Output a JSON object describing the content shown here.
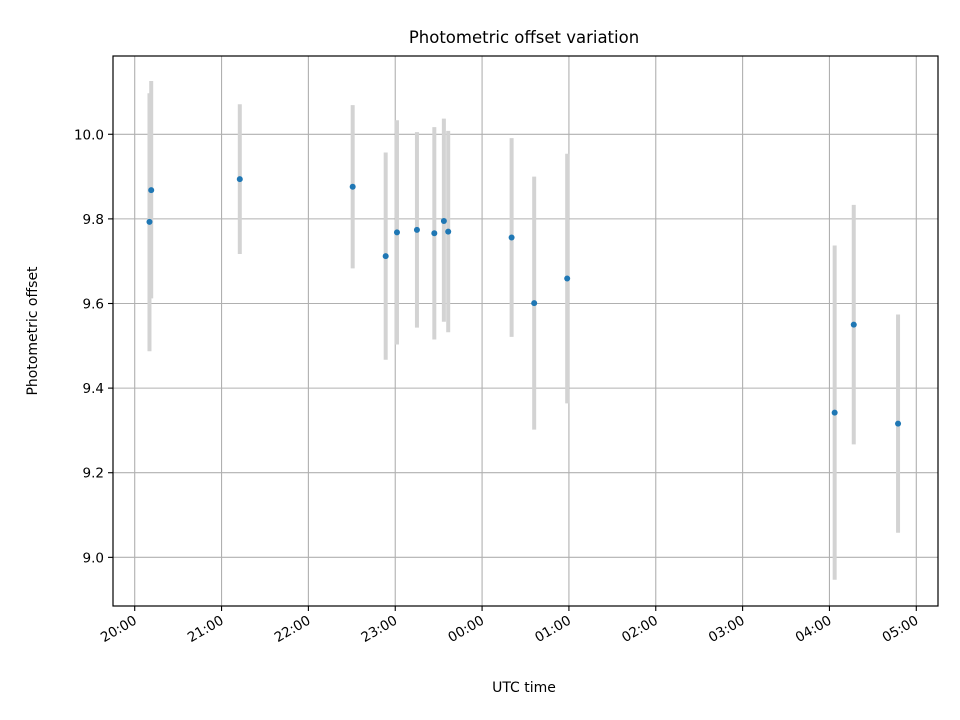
{
  "chart_data": {
    "type": "scatter",
    "title": "Photometric offset variation",
    "xlabel": "UTC time",
    "ylabel": "Photometric offset",
    "grid": true,
    "x_ticks": [
      {
        "hours": 0,
        "label": "20:00"
      },
      {
        "hours": 1,
        "label": "21:00"
      },
      {
        "hours": 2,
        "label": "22:00"
      },
      {
        "hours": 3,
        "label": "23:00"
      },
      {
        "hours": 4,
        "label": "00:00"
      },
      {
        "hours": 5,
        "label": "01:00"
      },
      {
        "hours": 6,
        "label": "02:00"
      },
      {
        "hours": 7,
        "label": "03:00"
      },
      {
        "hours": 8,
        "label": "04:00"
      },
      {
        "hours": 9,
        "label": "05:00"
      }
    ],
    "y_ticks": [
      {
        "value": 9.0,
        "label": "9.0"
      },
      {
        "value": 9.2,
        "label": "9.2"
      },
      {
        "value": 9.4,
        "label": "9.4"
      },
      {
        "value": 9.6,
        "label": "9.6"
      },
      {
        "value": 9.8,
        "label": "9.8"
      },
      {
        "value": 10.0,
        "label": "10.0"
      }
    ],
    "xlim_hours": [
      -0.25,
      9.25
    ],
    "ylim": [
      8.885,
      10.185
    ],
    "x_unit_note": "hours after 20:00 UTC",
    "points": [
      {
        "t": 0.17,
        "y": 9.793,
        "err_low": 9.487,
        "err_high": 10.097
      },
      {
        "t": 0.19,
        "y": 9.868,
        "err_low": 9.612,
        "err_high": 10.126
      },
      {
        "t": 1.21,
        "y": 9.894,
        "err_low": 9.717,
        "err_high": 10.071
      },
      {
        "t": 2.51,
        "y": 9.876,
        "err_low": 9.683,
        "err_high": 10.069
      },
      {
        "t": 2.89,
        "y": 9.712,
        "err_low": 9.467,
        "err_high": 9.957
      },
      {
        "t": 3.02,
        "y": 9.768,
        "err_low": 9.503,
        "err_high": 10.033
      },
      {
        "t": 3.25,
        "y": 9.774,
        "err_low": 9.543,
        "err_high": 10.005
      },
      {
        "t": 3.45,
        "y": 9.766,
        "err_low": 9.515,
        "err_high": 10.017
      },
      {
        "t": 3.56,
        "y": 9.795,
        "err_low": 9.557,
        "err_high": 10.037
      },
      {
        "t": 3.61,
        "y": 9.77,
        "err_low": 9.532,
        "err_high": 10.008
      },
      {
        "t": 4.34,
        "y": 9.756,
        "err_low": 9.521,
        "err_high": 9.991
      },
      {
        "t": 4.6,
        "y": 9.601,
        "err_low": 9.302,
        "err_high": 9.9
      },
      {
        "t": 4.98,
        "y": 9.659,
        "err_low": 9.364,
        "err_high": 9.954
      },
      {
        "t": 8.06,
        "y": 9.342,
        "err_low": 8.947,
        "err_high": 9.737
      },
      {
        "t": 8.28,
        "y": 9.55,
        "err_low": 9.267,
        "err_high": 9.833
      },
      {
        "t": 8.79,
        "y": 9.316,
        "err_low": 9.058,
        "err_high": 9.574
      }
    ],
    "colors": {
      "point": "#1f77b4",
      "errorbar": "#d3d3d3",
      "grid": "#b0b0b0"
    }
  }
}
